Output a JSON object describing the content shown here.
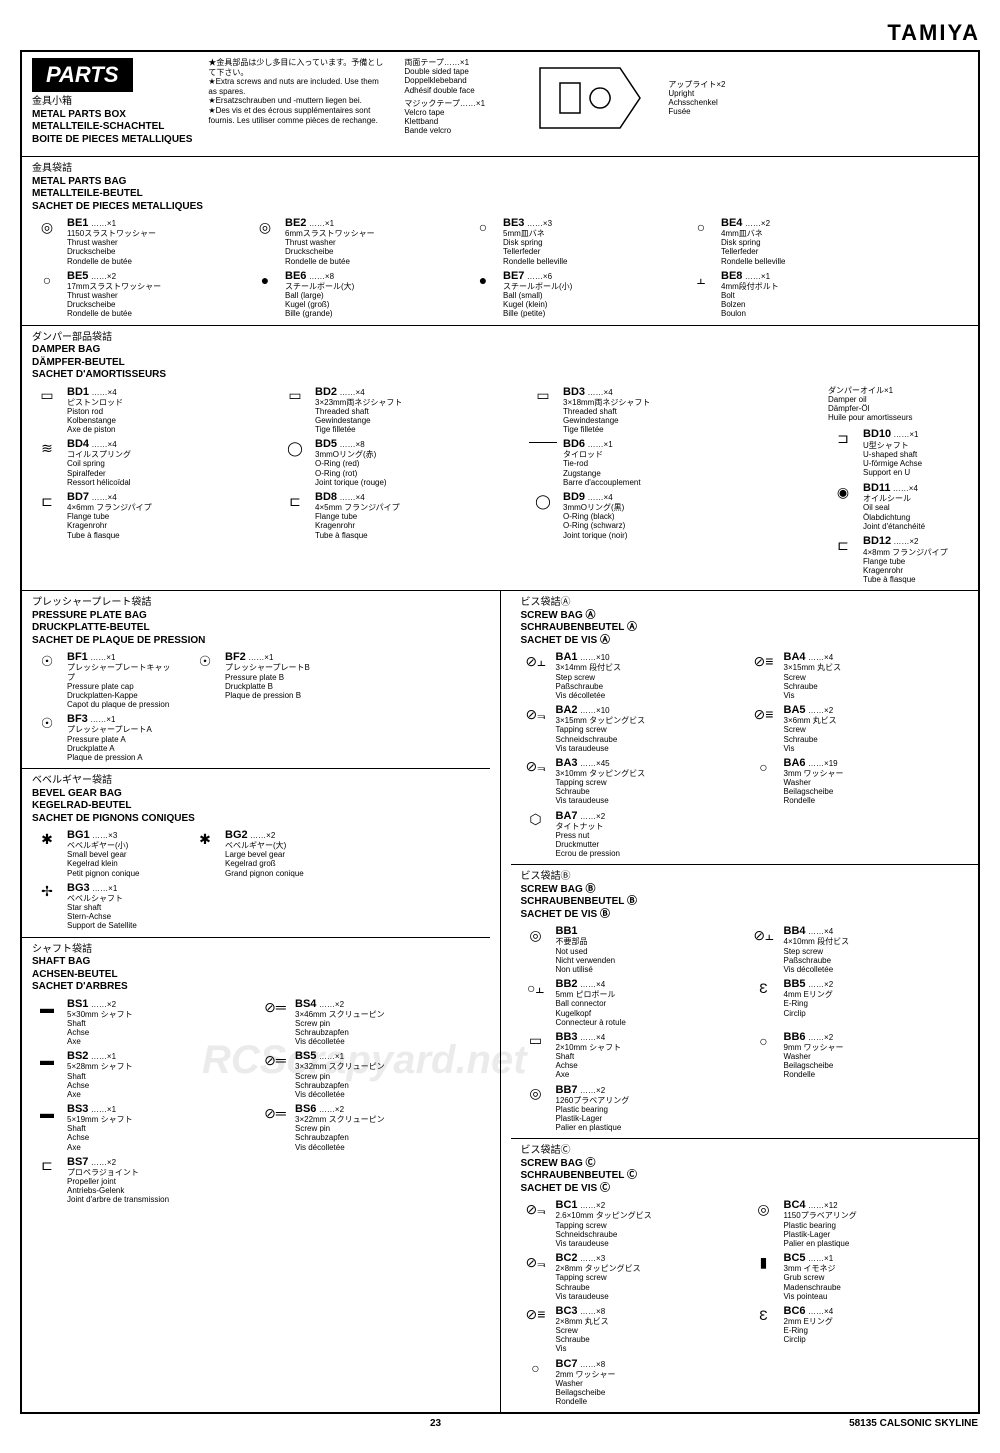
{
  "brand": "TAMIYA",
  "header": {
    "banner": "PARTS",
    "jp": "金具小箱",
    "en": "METAL PARTS BOX",
    "de": "METALLTEILE-SCHACHTEL",
    "fr": "BOITE DE PIECES METALLIQUES",
    "note_jp": "★金具部品は少し多目に入っています。予備として下さい。",
    "note_en": "★Extra screws and nuts are included. Use them as spares.",
    "note_de": "★Ersatzschrauben und -muttern liegen bei.",
    "note_fr": "★Des vis et des écrous supplémentaires sont fournis. Les utiliser comme pièces de rechange.",
    "tape_jp": "両面テープ……×1",
    "tape_en": "Double sided tape",
    "tape_de": "Doppelklebeband",
    "tape_fr": "Adhésif double face",
    "velcro_jp": "マジックテープ……×1",
    "velcro_en": "Velcro tape",
    "velcro_de": "Klettband",
    "velcro_fr": "Bande velcro",
    "upright_jp": "アップライト×2",
    "upright_en": "Upright",
    "upright_de": "Achsschenkel",
    "upright_fr": "Fusée"
  },
  "metal": {
    "head_jp": "金具袋詰",
    "head_en": "METAL PARTS BAG",
    "head_de": "METALLTEILE-BEUTEL",
    "head_fr": "SACHET DE PIECES METALLIQUES",
    "be1": {
      "c": "BE1",
      "q": "……×1",
      "jp": "1150スラストワッシャー",
      "en": "Thrust washer",
      "de": "Druckscheibe",
      "fr": "Rondelle de butée"
    },
    "be2": {
      "c": "BE2",
      "q": "……×1",
      "jp": "6mmスラストワッシャー",
      "en": "Thrust washer",
      "de": "Druckscheibe",
      "fr": "Rondelle de butée"
    },
    "be3": {
      "c": "BE3",
      "q": "……×3",
      "jp": "5mm皿バネ",
      "en": "Disk spring",
      "de": "Tellerfeder",
      "fr": "Rondelle belleville"
    },
    "be4": {
      "c": "BE4",
      "q": "……×2",
      "jp": "4mm皿バネ",
      "en": "Disk spring",
      "de": "Tellerfeder",
      "fr": "Rondelle belleville"
    },
    "be5": {
      "c": "BE5",
      "q": "……×2",
      "jp": "17mmスラストワッシャー",
      "en": "Thrust washer",
      "de": "Druckscheibe",
      "fr": "Rondelle de butée"
    },
    "be6": {
      "c": "BE6",
      "q": "……×8",
      "jp": "スチールボール(大)",
      "en": "Ball (large)",
      "de": "Kugel (groß)",
      "fr": "Bille (grande)"
    },
    "be7": {
      "c": "BE7",
      "q": "……×6",
      "jp": "スチールボール(小)",
      "en": "Ball (small)",
      "de": "Kugel (klein)",
      "fr": "Bille (petite)"
    },
    "be8": {
      "c": "BE8",
      "q": "……×1",
      "jp": "4mm段付ボルト",
      "en": "Bolt",
      "de": "Bolzen",
      "fr": "Boulon"
    }
  },
  "damper": {
    "head_jp": "ダンパー部品袋詰",
    "head_en": "DAMPER BAG",
    "head_de": "DÄMPFER-BEUTEL",
    "head_fr": "SACHET D'AMORTISSEURS",
    "bd1": {
      "c": "BD1",
      "q": "……×4",
      "jp": "ピストンロッド",
      "en": "Piston rod",
      "de": "Kolbenstange",
      "fr": "Axe de piston"
    },
    "bd2": {
      "c": "BD2",
      "q": "……×4",
      "jp": "3×23mm両ネジシャフト",
      "en": "Threaded shaft",
      "de": "Gewindestange",
      "fr": "Tige filletée"
    },
    "bd3": {
      "c": "BD3",
      "q": "……×4",
      "jp": "3×18mm両ネジシャフト",
      "en": "Threaded shaft",
      "de": "Gewindestange",
      "fr": "Tige filletée"
    },
    "bd4": {
      "c": "BD4",
      "q": "……×4",
      "jp": "コイルスプリング",
      "en": "Coil spring",
      "de": "Spiralfeder",
      "fr": "Ressort hélicoïdal"
    },
    "bd5": {
      "c": "BD5",
      "q": "……×8",
      "jp": "3mmOリング(赤)",
      "en": "O-Ring (red)",
      "de": "O-Ring (rot)",
      "fr": "Joint torique (rouge)"
    },
    "bd6": {
      "c": "BD6",
      "q": "……×1",
      "jp": "タイロッド",
      "en": "Tie-rod",
      "de": "Zugstange",
      "fr": "Barre d'accouplement"
    },
    "bd7": {
      "c": "BD7",
      "q": "……×4",
      "jp": "4×6mm フランジパイプ",
      "en": "Flange tube",
      "de": "Kragenrohr",
      "fr": "Tube à flasque"
    },
    "bd8": {
      "c": "BD8",
      "q": "……×4",
      "jp": "4×5mm フランジパイプ",
      "en": "Flange tube",
      "de": "Kragenrohr",
      "fr": "Tube à flasque"
    },
    "bd9": {
      "c": "BD9",
      "q": "……×4",
      "jp": "3mmOリング(黒)",
      "en": "O-Ring (black)",
      "de": "O-Ring (schwarz)",
      "fr": "Joint torique (noir)"
    },
    "oil_jp": "ダンパーオイル×1",
    "oil_en": "Damper oil",
    "oil_de": "Dämpfer-Öl",
    "oil_fr": "Huile pour amortisseurs",
    "bd10": {
      "c": "BD10",
      "q": "……×1",
      "jp": "U型シャフト",
      "en": "U-shaped shaft",
      "de": "U-förmige Achse",
      "fr": "Support en U"
    },
    "bd11": {
      "c": "BD11",
      "q": "……×4",
      "jp": "オイルシール",
      "en": "Oil seal",
      "de": "Ölabdichtung",
      "fr": "Joint d'étanchéité"
    },
    "bd12": {
      "c": "BD12",
      "q": "……×2",
      "jp": "4×8mm フランジパイプ",
      "en": "Flange tube",
      "de": "Kragenrohr",
      "fr": "Tube à flasque"
    }
  },
  "pressure": {
    "head_jp": "プレッシャープレート袋詰",
    "head_en": "PRESSURE PLATE BAG",
    "head_de": "DRUCKPLATTE-BEUTEL",
    "head_fr": "SACHET DE PLAQUE DE PRESSION",
    "bf1": {
      "c": "BF1",
      "q": "……×1",
      "jp": "プレッシャープレートキャップ",
      "en": "Pressure plate cap",
      "de": "Druckplatten-Kappe",
      "fr": "Capot du plaque de pression"
    },
    "bf2": {
      "c": "BF2",
      "q": "……×1",
      "jp": "プレッシャープレートB",
      "en": "Pressure plate B",
      "de": "Druckplatte B",
      "fr": "Plaque de pression B"
    },
    "bf3": {
      "c": "BF3",
      "q": "……×1",
      "jp": "プレッシャープレートA",
      "en": "Pressure plate A",
      "de": "Druckplatte A",
      "fr": "Plaque de pression A"
    }
  },
  "bevel": {
    "head_jp": "ベベルギヤー袋詰",
    "head_en": "BEVEL GEAR BAG",
    "head_de": "KEGELRAD-BEUTEL",
    "head_fr": "SACHET DE PIGNONS CONIQUES",
    "bg1": {
      "c": "BG1",
      "q": "……×3",
      "jp": "ベベルギヤー(小)",
      "en": "Small bevel gear",
      "de": "Kegelrad klein",
      "fr": "Petit pignon conique"
    },
    "bg2": {
      "c": "BG2",
      "q": "……×2",
      "jp": "ベベルギヤー(大)",
      "en": "Large bevel gear",
      "de": "Kegelrad groß",
      "fr": "Grand pignon conique"
    },
    "bg3": {
      "c": "BG3",
      "q": "……×1",
      "jp": "ベベルシャフト",
      "en": "Star shaft",
      "de": "Stern-Achse",
      "fr": "Support de Satellite"
    }
  },
  "shaft": {
    "head_jp": "シャフト袋詰",
    "head_en": "SHAFT BAG",
    "head_de": "ACHSEN-BEUTEL",
    "head_fr": "SACHET D'ARBRES",
    "bs1": {
      "c": "BS1",
      "q": "……×2",
      "jp": "5×30mm シャフト",
      "en": "Shaft",
      "de": "Achse",
      "fr": "Axe"
    },
    "bs2": {
      "c": "BS2",
      "q": "……×1",
      "jp": "5×28mm シャフト",
      "en": "Shaft",
      "de": "Achse",
      "fr": "Axe"
    },
    "bs3": {
      "c": "BS3",
      "q": "……×1",
      "jp": "5×19mm シャフト",
      "en": "Shaft",
      "de": "Achse",
      "fr": "Axe"
    },
    "bs4": {
      "c": "BS4",
      "q": "……×2",
      "jp": "3×46mm スクリューピン",
      "en": "Screw pin",
      "de": "Schraubzapfen",
      "fr": "Vis décolletée"
    },
    "bs5": {
      "c": "BS5",
      "q": "……×1",
      "jp": "3×32mm スクリューピン",
      "en": "Screw pin",
      "de": "Schraubzapfen",
      "fr": "Vis décolletée"
    },
    "bs6": {
      "c": "BS6",
      "q": "……×2",
      "jp": "3×22mm スクリューピン",
      "en": "Screw pin",
      "de": "Schraubzapfen",
      "fr": "Vis décolletée"
    },
    "bs7": {
      "c": "BS7",
      "q": "……×2",
      "jp": "プロペラジョイント",
      "en": "Propeller joint",
      "de": "Antriebs-Gelenk",
      "fr": "Joint d'arbre de transmission"
    }
  },
  "screwA": {
    "head_jp": "ビス袋詰Ⓐ",
    "head_en": "SCREW BAG Ⓐ",
    "head_de": "SCHRAUBENBEUTEL Ⓐ",
    "head_fr": "SACHET DE VIS Ⓐ",
    "ba1": {
      "c": "BA1",
      "q": "……×10",
      "jp": "3×14mm 段付ビス",
      "en": "Step screw",
      "de": "Paßschraube",
      "fr": "Vis décolletée"
    },
    "ba2": {
      "c": "BA2",
      "q": "……×10",
      "jp": "3×15mm タッピングビス",
      "en": "Tapping screw",
      "de": "Schneidschraube",
      "fr": "Vis taraudeuse"
    },
    "ba3": {
      "c": "BA3",
      "q": "……×45",
      "jp": "3×10mm タッピングビス",
      "en": "Tapping screw",
      "de": "Schraube",
      "fr": "Vis taraudeuse"
    },
    "ba4": {
      "c": "BA4",
      "q": "……×4",
      "jp": "3×15mm 丸ビス",
      "en": "Screw",
      "de": "Schraube",
      "fr": "Vis"
    },
    "ba5": {
      "c": "BA5",
      "q": "……×2",
      "jp": "3×6mm 丸ビス",
      "en": "Screw",
      "de": "Schraube",
      "fr": "Vis"
    },
    "ba6": {
      "c": "BA6",
      "q": "……×19",
      "jp": "3mm ワッシャー",
      "en": "Washer",
      "de": "Beilagscheibe",
      "fr": "Rondelle"
    },
    "ba7": {
      "c": "BA7",
      "q": "……×2",
      "jp": "タイトナット",
      "en": "Press nut",
      "de": "Druckmutter",
      "fr": "Ecrou de pression"
    }
  },
  "screwB": {
    "head_jp": "ビス袋詰Ⓑ",
    "head_en": "SCREW BAG Ⓑ",
    "head_de": "SCHRAUBENBEUTEL Ⓑ",
    "head_fr": "SACHET DE VIS Ⓑ",
    "bb1": {
      "c": "BB1",
      "q": "",
      "jp": "不要部品",
      "en": "Not used",
      "de": "Nicht verwenden",
      "fr": "Non utilisé"
    },
    "bb2": {
      "c": "BB2",
      "q": "……×4",
      "jp": "5mm ピロボール",
      "en": "Ball connector",
      "de": "Kugelkopf",
      "fr": "Connecteur à rotule"
    },
    "bb3": {
      "c": "BB3",
      "q": "……×4",
      "jp": "2×10mm シャフト",
      "en": "Shaft",
      "de": "Achse",
      "fr": "Axe"
    },
    "bb4": {
      "c": "BB4",
      "q": "……×4",
      "jp": "4×10mm 段付ビス",
      "en": "Step screw",
      "de": "Paßschraube",
      "fr": "Vis décolletée"
    },
    "bb5": {
      "c": "BB5",
      "q": "……×2",
      "jp": "4mm Eリング",
      "en": "E-Ring",
      "de": "",
      "fr": "Circlip"
    },
    "bb6": {
      "c": "BB6",
      "q": "……×2",
      "jp": "9mm ワッシャー",
      "en": "Washer",
      "de": "Beilagscheibe",
      "fr": "Rondelle"
    },
    "bb7": {
      "c": "BB7",
      "q": "……×2",
      "jp": "1260プラベアリング",
      "en": "Plastic bearing",
      "de": "Plastik-Lager",
      "fr": "Palier en plastique"
    }
  },
  "screwC": {
    "head_jp": "ビス袋詰Ⓒ",
    "head_en": "SCREW BAG Ⓒ",
    "head_de": "SCHRAUBENBEUTEL Ⓒ",
    "head_fr": "SACHET DE VIS Ⓒ",
    "bc1": {
      "c": "BC1",
      "q": "……×2",
      "jp": "2.6×10mm タッピングビス",
      "en": "Tapping screw",
      "de": "Schneidschraube",
      "fr": "Vis taraudeuse"
    },
    "bc2": {
      "c": "BC2",
      "q": "……×3",
      "jp": "2×8mm タッピングビス",
      "en": "Tapping screw",
      "de": "Schraube",
      "fr": "Vis taraudeuse"
    },
    "bc3": {
      "c": "BC3",
      "q": "……×8",
      "jp": "2×8mm 丸ビス",
      "en": "Screw",
      "de": "Schraube",
      "fr": "Vis"
    },
    "bc4": {
      "c": "BC4",
      "q": "……×12",
      "jp": "1150プラベアリング",
      "en": "Plastic bearing",
      "de": "Plastik-Lager",
      "fr": "Palier en plastique"
    },
    "bc5": {
      "c": "BC5",
      "q": "……×1",
      "jp": "3mm イモネジ",
      "en": "Grub screw",
      "de": "Madenschraube",
      "fr": "Vis pointeau"
    },
    "bc6": {
      "c": "BC6",
      "q": "……×4",
      "jp": "2mm Eリング",
      "en": "E-Ring",
      "de": "",
      "fr": "Circlip"
    },
    "bc7": {
      "c": "BC7",
      "q": "……×8",
      "jp": "2mm ワッシャー",
      "en": "Washer",
      "de": "Beilagscheibe",
      "fr": "Rondelle"
    }
  },
  "footer": {
    "page": "23",
    "model": "58135 CALSONIC SKYLINE"
  },
  "watermark": "RCScrapyard.net"
}
